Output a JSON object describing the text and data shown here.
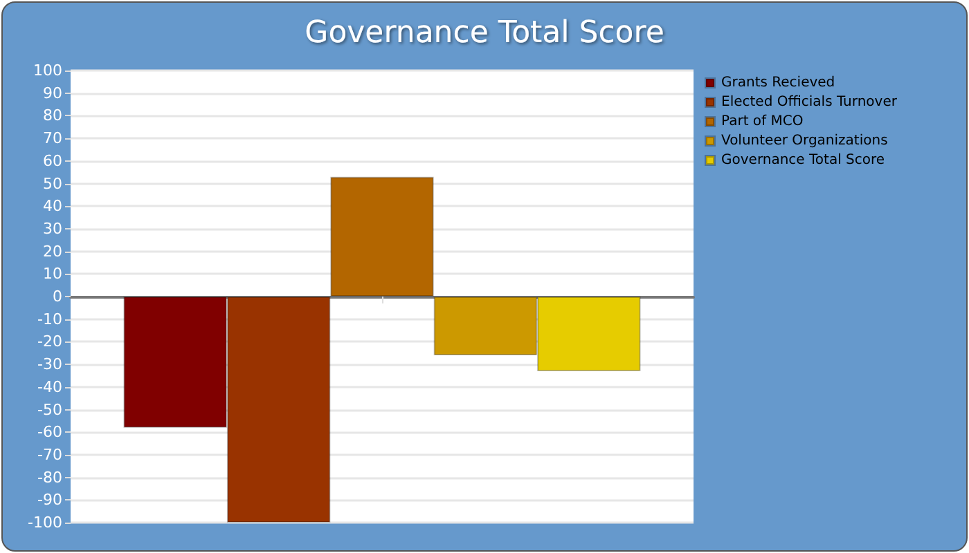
{
  "chart_data": {
    "type": "bar",
    "title": "Governance Total Score",
    "categories": [
      null
    ],
    "series": [
      {
        "name": "Grants Recieved",
        "color": "#800000",
        "values": [
          -58
        ]
      },
      {
        "name": "Elected Officials Turnover",
        "color": "#993300",
        "values": [
          -100
        ]
      },
      {
        "name": "Part of MCO",
        "color": "#b36600",
        "values": [
          53
        ]
      },
      {
        "name": "Volunteer Organizations",
        "color": "#cc9900",
        "values": [
          -26
        ]
      },
      {
        "name": "Governance Total Score",
        "color": "#e6cc00",
        "values": [
          -33
        ]
      }
    ],
    "ylim": [
      -100,
      100
    ],
    "yticks": [
      -100,
      -90,
      -80,
      -70,
      -60,
      -50,
      -40,
      -30,
      -20,
      -10,
      0,
      10,
      20,
      30,
      40,
      50,
      60,
      70,
      80,
      90,
      100
    ],
    "grid": "y",
    "legend": "top right"
  }
}
